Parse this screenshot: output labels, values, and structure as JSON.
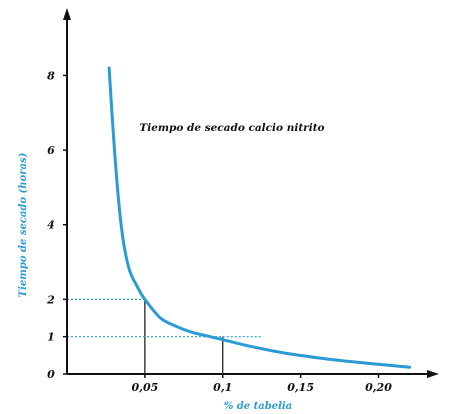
{
  "colors": {
    "curve": "#2b9bd6",
    "axis": "#111111",
    "guide": "#2b9bd6",
    "guide_drop": "#111111",
    "axis_title": "#2b9bd6"
  },
  "chart_data": {
    "type": "line",
    "xlabel": "% de tabelia",
    "ylabel": "Tiempo de secado (horas)",
    "annotation": "Tiempo de secado calcio nitrito",
    "xlim": [
      0,
      0.235
    ],
    "ylim": [
      0,
      9.7
    ],
    "x_ticks": [
      {
        "value": 0.05,
        "label": "0,05"
      },
      {
        "value": 0.1,
        "label": "0,1"
      },
      {
        "value": 0.15,
        "label": "0,15"
      },
      {
        "value": 0.2,
        "label": "0,20"
      }
    ],
    "y_ticks": [
      {
        "value": 0,
        "label": "0"
      },
      {
        "value": 1,
        "label": "1"
      },
      {
        "value": 2,
        "label": "2"
      },
      {
        "value": 4,
        "label": "4"
      },
      {
        "value": 6,
        "label": "6"
      },
      {
        "value": 8,
        "label": "8"
      }
    ],
    "series": [
      {
        "x": [
          0.027,
          0.03,
          0.033,
          0.036,
          0.04,
          0.045,
          0.05,
          0.06,
          0.07,
          0.08,
          0.09,
          0.1,
          0.12,
          0.14,
          0.16,
          0.18,
          0.2,
          0.22
        ],
        "y": [
          8.2,
          6.3,
          4.7,
          3.6,
          2.8,
          2.35,
          2.0,
          1.5,
          1.28,
          1.12,
          1.02,
          0.92,
          0.72,
          0.56,
          0.44,
          0.34,
          0.26,
          0.18
        ]
      }
    ],
    "reference_points": [
      {
        "x": 0.05,
        "y": 2
      },
      {
        "x": 0.1,
        "y": 1
      }
    ]
  }
}
